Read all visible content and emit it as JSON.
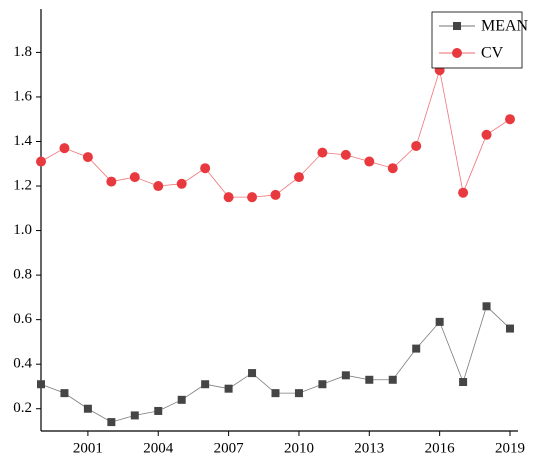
{
  "chart_data": {
    "type": "line",
    "x": [
      1999,
      2000,
      2001,
      2002,
      2003,
      2004,
      2005,
      2006,
      2007,
      2008,
      2009,
      2010,
      2011,
      2012,
      2013,
      2014,
      2015,
      2016,
      2017,
      2018,
      2019
    ],
    "series": [
      {
        "name": "MEAN",
        "color": "#454545",
        "marker": "square",
        "values": [
          0.31,
          0.27,
          0.2,
          0.14,
          0.17,
          0.19,
          0.24,
          0.31,
          0.29,
          0.36,
          0.27,
          0.27,
          0.31,
          0.35,
          0.33,
          0.33,
          0.47,
          0.59,
          0.32,
          0.66,
          0.56
        ]
      },
      {
        "name": "CV",
        "color": "#e8393f",
        "marker": "circle",
        "values": [
          1.31,
          1.37,
          1.33,
          1.22,
          1.24,
          1.2,
          1.21,
          1.28,
          1.15,
          1.15,
          1.16,
          1.24,
          1.35,
          1.34,
          1.31,
          1.28,
          1.38,
          1.72,
          1.17,
          1.43,
          1.5
        ]
      }
    ],
    "xlim": [
      1999,
      2019
    ],
    "xticks": [
      2001,
      2004,
      2007,
      2010,
      2013,
      2016,
      2019
    ],
    "ylim": [
      0.1,
      1.95
    ],
    "yticks": [
      0.2,
      0.4,
      0.6,
      0.8,
      {
        "value": 1,
        "label": "1.0"
      },
      1.2,
      1.4,
      1.6,
      1.8
    ],
    "legend": "upper right",
    "grid": false
  }
}
